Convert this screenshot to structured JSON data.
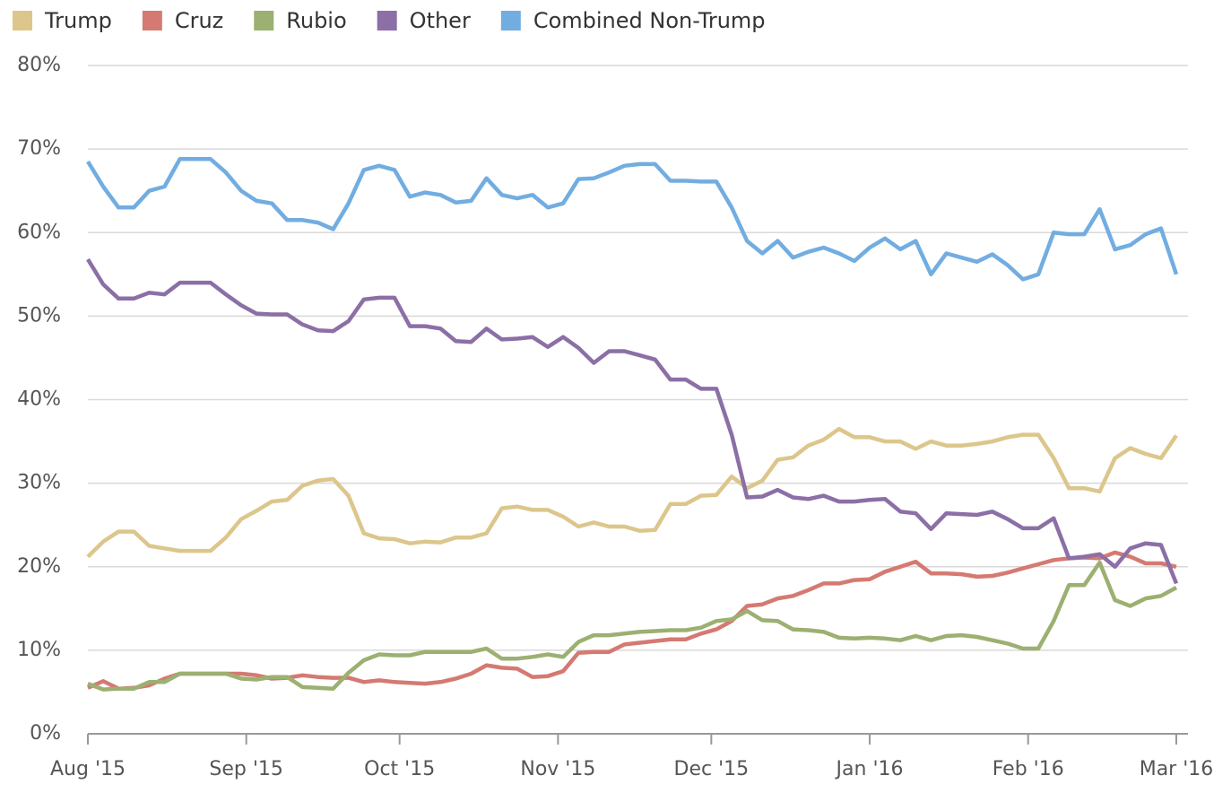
{
  "chart_data": {
    "type": "line",
    "x": [
      0,
      3,
      6,
      9,
      12,
      15,
      18,
      21,
      24,
      27,
      30,
      33,
      36,
      39,
      42,
      45,
      48,
      51,
      54,
      57,
      60,
      63,
      66,
      69,
      72,
      75,
      78,
      81,
      84,
      87,
      90,
      93,
      96,
      99,
      102,
      105,
      108,
      111,
      114,
      117,
      120,
      123,
      126,
      129,
      132,
      135,
      138,
      141,
      144,
      147,
      150,
      153,
      156,
      159,
      162,
      165,
      168,
      171,
      174,
      177,
      180,
      183,
      186,
      189,
      192,
      195,
      198,
      201,
      204,
      207,
      210,
      213
    ],
    "series": [
      {
        "name": "Trump",
        "color": "#dcc68b",
        "values": [
          21.2,
          23,
          24.2,
          24.2,
          22.5,
          22.2,
          21.9,
          21.9,
          21.9,
          23.5,
          25.7,
          26.7,
          27.8,
          28,
          29.7,
          30.3,
          30.5,
          28.5,
          24,
          23.4,
          23.3,
          22.8,
          23,
          22.9,
          23.5,
          23.5,
          24,
          27,
          27.2,
          26.8,
          26.8,
          26,
          24.8,
          25.3,
          24.8,
          24.8,
          24.3,
          24.4,
          27.5,
          27.5,
          28.5,
          28.6,
          30.8,
          29.4,
          30.3,
          32.8,
          33.1,
          34.5,
          35.2,
          36.5,
          35.5,
          35.5,
          35,
          35,
          34.1,
          35,
          34.5,
          34.5,
          34.7,
          35,
          35.5,
          35.8,
          35.8,
          33,
          29.4,
          29.4,
          29,
          33,
          34.2,
          33.5,
          33,
          35.7
        ]
      },
      {
        "name": "Cruz",
        "color": "#d47a72",
        "values": [
          5.5,
          6.3,
          5.4,
          5.5,
          5.8,
          6.6,
          7.2,
          7.2,
          7.2,
          7.2,
          7.2,
          7,
          6.6,
          6.7,
          7,
          6.8,
          6.7,
          6.7,
          6.2,
          6.4,
          6.2,
          6.1,
          6,
          6.2,
          6.6,
          7.2,
          8.2,
          7.9,
          7.8,
          6.8,
          6.9,
          7.5,
          9.7,
          9.8,
          9.8,
          10.7,
          10.9,
          11.1,
          11.3,
          11.3,
          12,
          12.5,
          13.5,
          15.3,
          15.5,
          16.2,
          16.5,
          17.2,
          18,
          18,
          18.4,
          18.5,
          19.4,
          20,
          20.6,
          19.2,
          19.2,
          19.1,
          18.8,
          18.9,
          19.3,
          19.8,
          20.3,
          20.8,
          21,
          21.1,
          21,
          21.7,
          21.2,
          20.4,
          20.4,
          20
        ]
      },
      {
        "name": "Rubio",
        "color": "#9cb071",
        "values": [
          6,
          5.3,
          5.4,
          5.4,
          6.2,
          6.2,
          7.2,
          7.2,
          7.2,
          7.2,
          6.6,
          6.5,
          6.8,
          6.8,
          5.6,
          5.5,
          5.4,
          7.3,
          8.8,
          9.5,
          9.4,
          9.4,
          9.8,
          9.8,
          9.8,
          9.8,
          10.2,
          9,
          9,
          9.2,
          9.5,
          9.2,
          11,
          11.8,
          11.8,
          12,
          12.2,
          12.3,
          12.4,
          12.4,
          12.7,
          13.5,
          13.7,
          14.7,
          13.6,
          13.5,
          12.5,
          12.4,
          12.2,
          11.5,
          11.4,
          11.5,
          11.4,
          11.2,
          11.7,
          11.2,
          11.7,
          11.8,
          11.6,
          11.2,
          10.8,
          10.2,
          10.2,
          13.5,
          17.8,
          17.8,
          20.5,
          16,
          15.3,
          16.2,
          16.5,
          17.5
        ]
      },
      {
        "name": "Other",
        "color": "#8b6fa6",
        "values": [
          56.8,
          53.8,
          52.1,
          52.1,
          52.8,
          52.6,
          54,
          54,
          54,
          52.6,
          51.3,
          50.3,
          50.2,
          50.2,
          49,
          48.3,
          48.2,
          49.4,
          52,
          52.2,
          52.2,
          48.8,
          48.8,
          48.5,
          47,
          46.9,
          48.5,
          47.2,
          47.3,
          47.5,
          46.3,
          47.5,
          46.2,
          44.4,
          45.8,
          45.8,
          45.3,
          44.8,
          42.4,
          42.4,
          41.3,
          41.3,
          35.8,
          28.3,
          28.4,
          29.2,
          28.3,
          28.1,
          28.5,
          27.8,
          27.8,
          28,
          28.1,
          26.6,
          26.4,
          24.5,
          26.4,
          26.3,
          26.2,
          26.6,
          25.7,
          24.6,
          24.6,
          25.8,
          21,
          21.2,
          21.5,
          20,
          22.2,
          22.8,
          22.6,
          18
        ]
      },
      {
        "name": "Combined Non-Trump",
        "color": "#72ade1",
        "values": [
          68.5,
          65.5,
          63,
          63,
          65,
          65.5,
          68.8,
          68.8,
          68.8,
          67.2,
          65,
          63.8,
          63.5,
          61.5,
          61.5,
          61.2,
          60.4,
          63.5,
          67.5,
          68,
          67.5,
          64.3,
          64.8,
          64.5,
          63.6,
          63.8,
          66.5,
          64.5,
          64.1,
          64.5,
          63,
          63.5,
          66.4,
          66.5,
          67.2,
          68,
          68.2,
          68.2,
          66.2,
          66.2,
          66.1,
          66.1,
          63,
          59,
          57.5,
          59,
          57,
          57.7,
          58.2,
          57.5,
          56.6,
          58.2,
          59.3,
          58,
          59,
          55,
          57.5,
          57,
          56.5,
          57.4,
          56.1,
          54.4,
          55,
          60,
          59.8,
          59.8,
          62.8,
          58,
          58.5,
          59.8,
          60.5,
          55
        ]
      }
    ],
    "xlim": [
      0,
      213
    ],
    "xticks": [
      {
        "value": 0,
        "label": "Aug '15"
      },
      {
        "value": 31,
        "label": "Sep '15"
      },
      {
        "value": 61,
        "label": "Oct '15"
      },
      {
        "value": 92,
        "label": "Nov '15"
      },
      {
        "value": 122,
        "label": "Dec '15"
      },
      {
        "value": 153,
        "label": "Jan '16"
      },
      {
        "value": 184,
        "label": "Feb '16"
      },
      {
        "value": 213,
        "label": "Mar '16"
      }
    ],
    "ylim": [
      0,
      80
    ],
    "yticks": [
      {
        "value": 0,
        "label": "0%"
      },
      {
        "value": 10,
        "label": "10%"
      },
      {
        "value": 20,
        "label": "20%"
      },
      {
        "value": 30,
        "label": "30%"
      },
      {
        "value": 40,
        "label": "40%"
      },
      {
        "value": 50,
        "label": "50%"
      },
      {
        "value": 60,
        "label": "60%"
      },
      {
        "value": 70,
        "label": "70%"
      },
      {
        "value": 80,
        "label": "80%"
      }
    ],
    "grid": true,
    "legend": "top"
  }
}
